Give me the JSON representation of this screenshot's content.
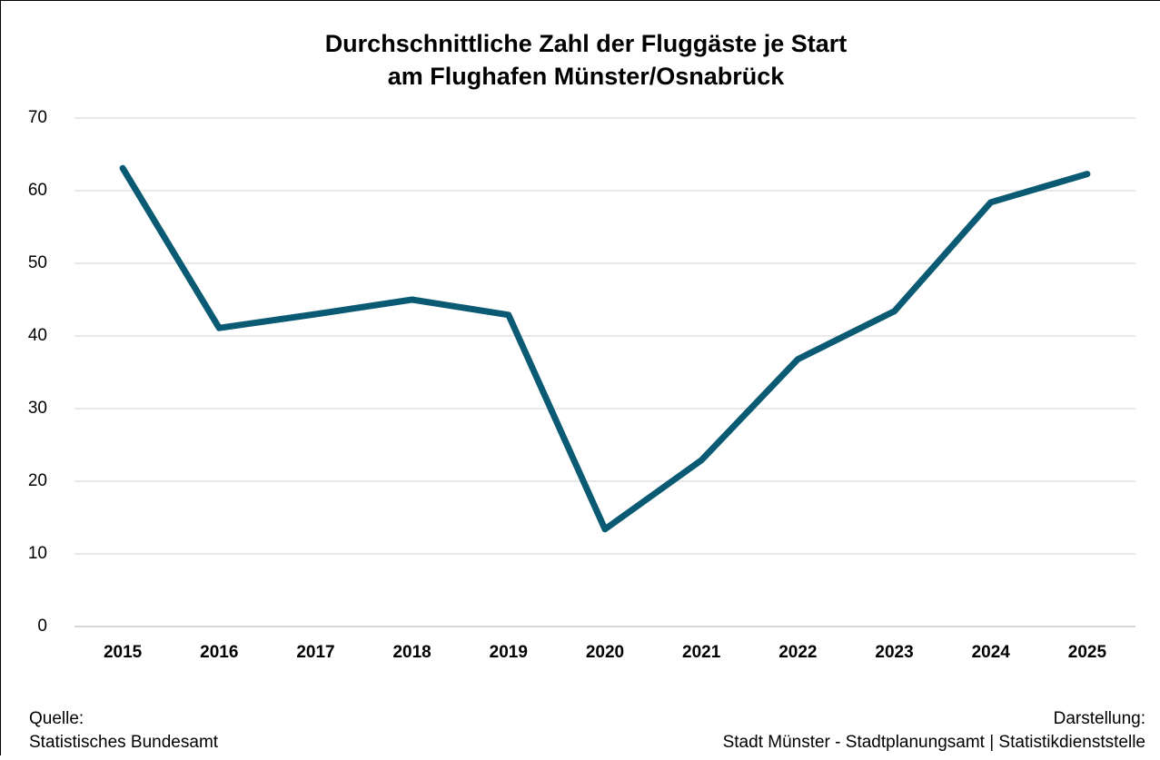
{
  "chart_data": {
    "type": "line",
    "title": [
      "Durchschnittliche Zahl der Fluggäste je Start",
      "am Flughafen Münster/Osnabrück"
    ],
    "categories": [
      "2015",
      "2016",
      "2017",
      "2018",
      "2019",
      "2020",
      "2021",
      "2022",
      "2023",
      "2024",
      "2025"
    ],
    "series": [
      {
        "color": "#0b5a73",
        "values": [
          63.1,
          41.1,
          43.0,
          45.0,
          42.9,
          13.4,
          22.9,
          36.8,
          43.4,
          58.4,
          62.3
        ]
      }
    ],
    "ylim": [
      0,
      70
    ],
    "yticks": [
      0,
      10,
      20,
      30,
      40,
      50,
      60,
      70
    ],
    "grid": true,
    "source": [
      "Quelle:",
      "Statistisches Bundesamt"
    ],
    "credit": [
      "Darstellung:",
      "Stadt Münster - Stadtplanungsamt | Statistikdienststelle"
    ]
  }
}
